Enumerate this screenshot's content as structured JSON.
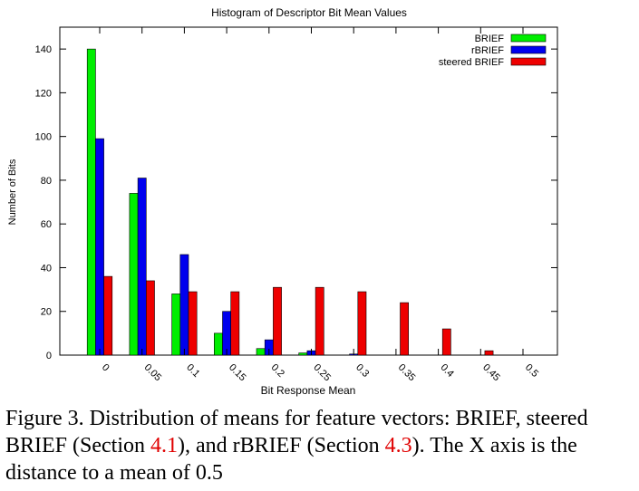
{
  "chart_data": {
    "type": "bar",
    "title": "Histogram of Descriptor Bit Mean Values",
    "xlabel": "Bit Response Mean",
    "ylabel": "Number of Bits",
    "categories": [
      "0",
      "0.05",
      "0.1",
      "0.15",
      "0.2",
      "0.25",
      "0.3",
      "0.35",
      "0.4",
      "0.45",
      "0.5"
    ],
    "series": [
      {
        "name": "BRIEF",
        "color": "#00ee00",
        "values": [
          140,
          74,
          28,
          10,
          3,
          1,
          0,
          0,
          0,
          0,
          0
        ]
      },
      {
        "name": "rBRIEF",
        "color": "#0000ee",
        "values": [
          99,
          81,
          46,
          20,
          7,
          2,
          0.5,
          0,
          0,
          0,
          0
        ]
      },
      {
        "name": "steered BRIEF",
        "color": "#ee0000",
        "values": [
          36,
          34,
          29,
          29,
          31,
          31,
          29,
          24,
          12,
          2,
          0
        ]
      }
    ],
    "ylim": [
      0,
      150
    ],
    "yticks": [
      0,
      20,
      40,
      60,
      80,
      100,
      120,
      140
    ],
    "legend_position": "top-right",
    "grid": false
  },
  "caption": {
    "part1": "Figure 3. Distribution of means for feature vectors: BRIEF, steered BRIEF (Section ",
    "ref1": "4.1",
    "part2": "), and rBRIEF (Section ",
    "ref2": "4.3",
    "part3": "). The X axis is the distance to a mean of 0.5"
  }
}
